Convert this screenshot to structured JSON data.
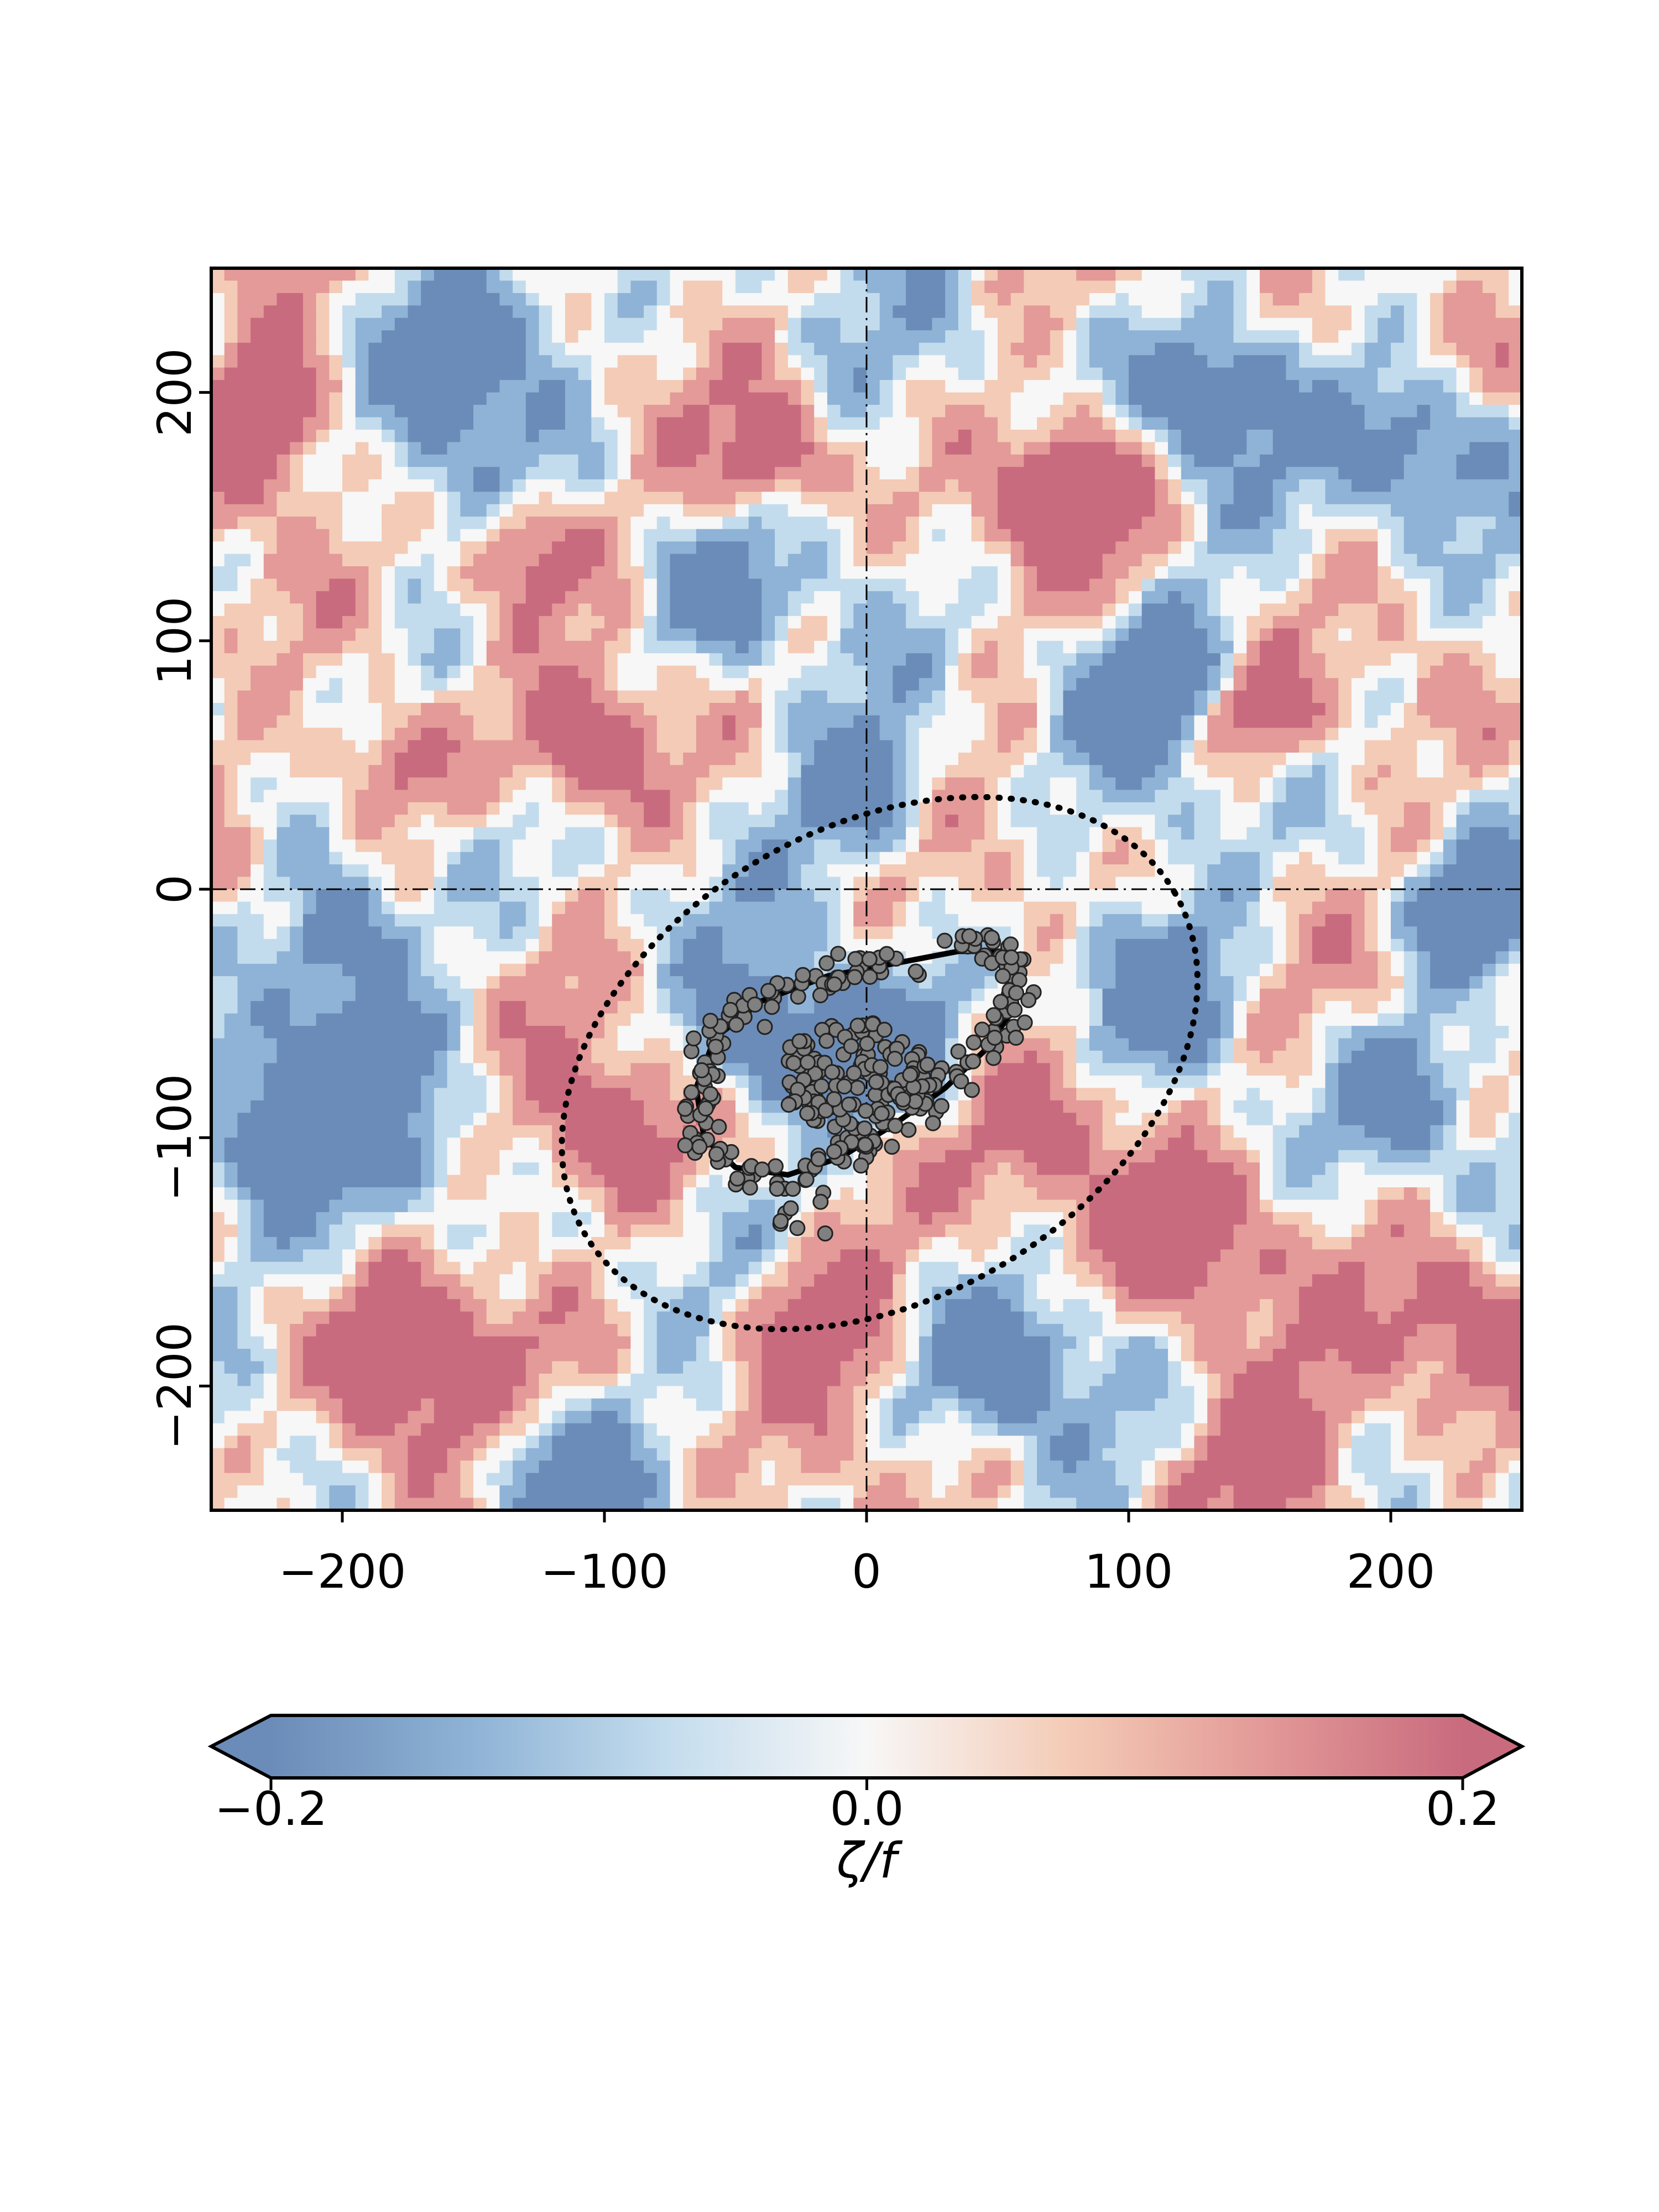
{
  "chart_data": {
    "type": "heatmap",
    "title": "",
    "xlabel": "",
    "ylabel": "",
    "xlim": [
      -250,
      250
    ],
    "ylim": [
      -250,
      250
    ],
    "x_ticks": [
      -200,
      -100,
      0,
      100,
      200
    ],
    "x_tick_labels": [
      "−200",
      "−100",
      "0",
      "100",
      "200"
    ],
    "y_ticks": [
      -200,
      -100,
      0,
      100,
      200
    ],
    "y_tick_labels": [
      "−200",
      "−100",
      "0",
      "100",
      "200"
    ],
    "grid": false,
    "reference_lines": {
      "x": 0,
      "y": 0,
      "style": "dash-dot"
    },
    "field": {
      "name": "relative vorticity",
      "colormap": [
        "#6b8cb8",
        "#8fb3d6",
        "#c3dced",
        "#f7f7f7",
        "#f4cbb6",
        "#e39a98",
        "#c96b7e"
      ],
      "range": [
        -0.2,
        0.2
      ]
    },
    "colorbar": {
      "label": "ζ/f",
      "ticks": [
        -0.2,
        0.0,
        0.2
      ],
      "tick_labels": [
        "−0.2",
        "0.0",
        "0.2"
      ],
      "extend": "both",
      "orientation": "horizontal",
      "placement": "bottom"
    },
    "overlays": {
      "dotted_ellipse": {
        "center": [
          5,
          -70
        ],
        "semi_axes": [
          130,
          95
        ],
        "angle_deg": 30,
        "style": "dotted"
      },
      "solid_contour": [
        [
          58,
          -35
        ],
        [
          55,
          -50
        ],
        [
          45,
          -65
        ],
        [
          30,
          -80
        ],
        [
          10,
          -95
        ],
        [
          -10,
          -108
        ],
        [
          -30,
          -115
        ],
        [
          -50,
          -112
        ],
        [
          -62,
          -100
        ],
        [
          -65,
          -80
        ],
        [
          -58,
          -60
        ],
        [
          -40,
          -45
        ],
        [
          -15,
          -35
        ],
        [
          10,
          -30
        ],
        [
          35,
          -25
        ],
        [
          52,
          -25
        ],
        [
          58,
          -35
        ]
      ],
      "particles_color": "#808080"
    }
  }
}
